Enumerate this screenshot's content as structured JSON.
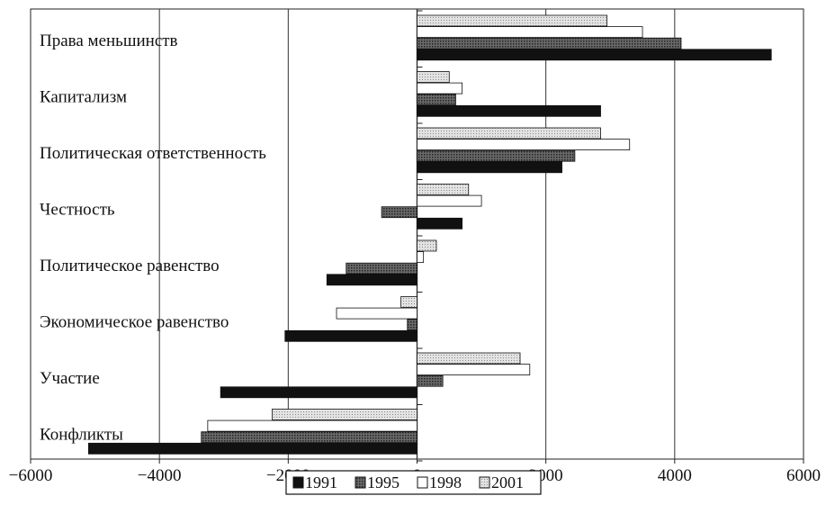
{
  "chart_data": {
    "type": "bar",
    "orientation": "horizontal",
    "title": "",
    "xlabel": "",
    "ylabel": "",
    "xlim": [
      -6000,
      6000
    ],
    "x_ticks": [
      -6000,
      -4000,
      -2000,
      0,
      2000,
      4000,
      6000
    ],
    "x_tick_labels": [
      "−6000",
      "−4000",
      "−2000",
      "0",
      "2000",
      "4000",
      "6000"
    ],
    "grid": "vertical",
    "legend_position": "bottom-center",
    "categories": [
      "Права меньшинств",
      "Капитализм",
      "Политическая ответственность",
      "Честность",
      "Политическое равенство",
      "Экономическое равенство",
      "Участие",
      "Конфликты"
    ],
    "series": [
      {
        "name": "1991",
        "color": "#111111",
        "pattern": "solid",
        "values": [
          5500,
          2850,
          2250,
          700,
          -1400,
          -2050,
          -3050,
          -5100
        ]
      },
      {
        "name": "1995",
        "color": "#555555",
        "pattern": "crosshatch",
        "values": [
          4100,
          600,
          2450,
          -550,
          -1100,
          -150,
          400,
          -3350
        ]
      },
      {
        "name": "1998",
        "color": "#ffffff",
        "pattern": "white",
        "values": [
          3500,
          700,
          3300,
          1000,
          100,
          -1250,
          1750,
          -3250
        ]
      },
      {
        "name": "2001",
        "color": "#cccccc",
        "pattern": "dotted",
        "values": [
          2950,
          500,
          2850,
          800,
          300,
          -250,
          1600,
          -2250
        ]
      }
    ]
  }
}
